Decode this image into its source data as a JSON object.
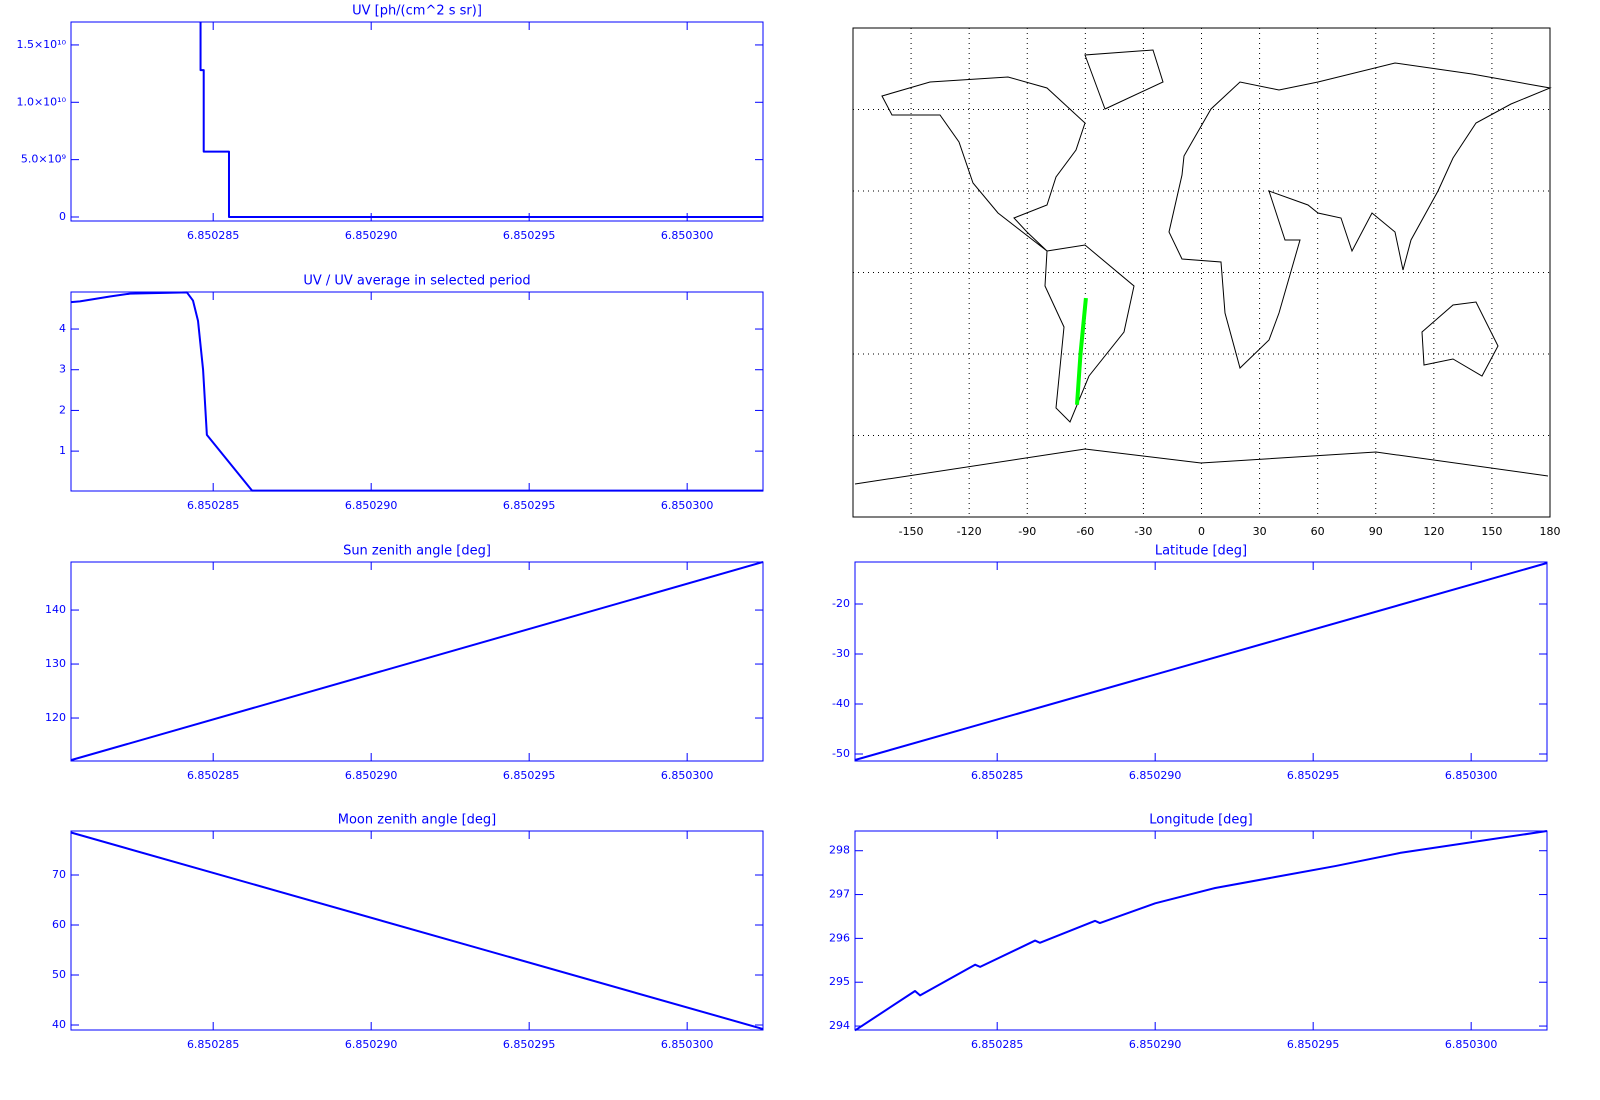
{
  "chart_data": [
    {
      "type": "line",
      "title": "UV [ph/(cm^2 s sr)]",
      "color": "#0000ff",
      "x": [
        6.8502846,
        6.8502846,
        6.8502847,
        6.8502847,
        6.8502855,
        6.8502855,
        6.8503024
      ],
      "values": [
        17000000000,
        12800000000,
        12800000000,
        5700000000,
        5700000000,
        0,
        0
      ],
      "xlim": [
        6.8502805,
        6.8503024
      ],
      "ylim": [
        -350000000,
        17000000000
      ],
      "xticks": [
        6.850285,
        {
          "value": 6.85029,
          "label": "6.850290"
        },
        6.850295,
        {
          "value": 6.8503,
          "label": "6.850300"
        }
      ],
      "yticks": [
        0,
        {
          "value": 5000000000,
          "label": "5.0×10⁹"
        },
        {
          "value": 10000000000,
          "label": "1.0×10¹⁰"
        },
        {
          "value": 15000000000,
          "label": "1.5×10¹⁰"
        }
      ]
    },
    {
      "type": "line",
      "title": "UV / UV average in selected period",
      "color": "#0000ff",
      "x": [
        6.8502805,
        6.85028078,
        6.85028173,
        6.85028237,
        6.85028417,
        6.85028436,
        6.85028452,
        6.85028468,
        6.8502848,
        6.85028623,
        6.8503024
      ],
      "values": [
        4.66,
        4.68,
        4.8,
        4.87,
        4.9,
        4.7,
        4.2,
        3.0,
        1.4,
        0.03,
        0.03
      ],
      "xlim": [
        6.8502805,
        6.8503024
      ],
      "ylim": [
        0.02,
        4.91
      ],
      "xticks": [
        6.850285,
        {
          "value": 6.85029,
          "label": "6.850290"
        },
        6.850295,
        {
          "value": 6.8503,
          "label": "6.850300"
        }
      ],
      "yticks": [
        1,
        2,
        3,
        4
      ]
    },
    {
      "type": "map",
      "color": "#00ff00",
      "x": [
        -64.3,
        -62.5,
        -59.7
      ],
      "values": [
        -48.7,
        -30,
        -9.4
      ],
      "xlim": [
        -180,
        180
      ],
      "ylim": [
        -90,
        90
      ],
      "xticks": [
        -150,
        -120,
        -90,
        -60,
        -30,
        0,
        30,
        60,
        90,
        120,
        150,
        180
      ],
      "ygrid": [
        -60,
        -30,
        0,
        30,
        60
      ]
    },
    {
      "type": "line",
      "title": "Sun zenith angle [deg]",
      "color": "#0000ff",
      "x": [
        6.8502805,
        6.8503024
      ],
      "values": [
        112.2,
        148.9
      ],
      "xlim": [
        6.8502805,
        6.8503024
      ],
      "ylim": [
        112.04,
        148.9
      ],
      "xticks": [
        6.850285,
        {
          "value": 6.85029,
          "label": "6.850290"
        },
        6.850295,
        {
          "value": 6.8503,
          "label": "6.850300"
        }
      ],
      "yticks": [
        120,
        130,
        140
      ]
    },
    {
      "type": "line",
      "title": "Latitude [deg]",
      "color": "#0000ff",
      "x": [
        6.8502805,
        6.8503024
      ],
      "values": [
        -51.2,
        -11.8
      ],
      "xlim": [
        6.8502805,
        6.8503024
      ],
      "ylim": [
        -51.4,
        -11.6
      ],
      "xticks": [
        6.850285,
        {
          "value": 6.85029,
          "label": "6.850290"
        },
        6.850295,
        {
          "value": 6.8503,
          "label": "6.850300"
        }
      ],
      "yticks": [
        -50,
        -40,
        -30,
        -20
      ]
    },
    {
      "type": "line",
      "title": "Moon zenith angle [deg]",
      "color": "#0000ff",
      "x": [
        6.8502805,
        6.8503024
      ],
      "values": [
        78.5,
        39.2
      ],
      "xlim": [
        6.8502805,
        6.8503024
      ],
      "ylim": [
        39,
        78.8
      ],
      "xticks": [
        6.850285,
        {
          "value": 6.85029,
          "label": "6.850290"
        },
        6.850295,
        {
          "value": 6.8503,
          "label": "6.850300"
        }
      ],
      "yticks": [
        40,
        50,
        60,
        70
      ]
    },
    {
      "type": "line",
      "title": "Longitude [deg]",
      "color": "#0000ff",
      "x": [
        6.8502805,
        6.8502824,
        6.85028256,
        6.8502843,
        6.85028446,
        6.8502862,
        6.85028635,
        6.8502881,
        6.85028825,
        6.85029,
        6.8502919,
        6.8502938,
        6.8502957,
        6.85029775,
        6.8503024
      ],
      "values": [
        293.9,
        294.8,
        294.7,
        295.4,
        295.35,
        295.95,
        295.9,
        296.4,
        296.35,
        296.8,
        297.15,
        297.4,
        297.65,
        297.95,
        298.45
      ],
      "xlim": [
        6.8502805,
        6.8503024
      ],
      "ylim": [
        293.91,
        298.45
      ],
      "xticks": [
        6.850285,
        {
          "value": 6.85029,
          "label": "6.850290"
        },
        6.850295,
        {
          "value": 6.8503,
          "label": "6.850300"
        }
      ],
      "yticks": [
        294,
        295,
        296,
        297,
        298
      ]
    }
  ]
}
